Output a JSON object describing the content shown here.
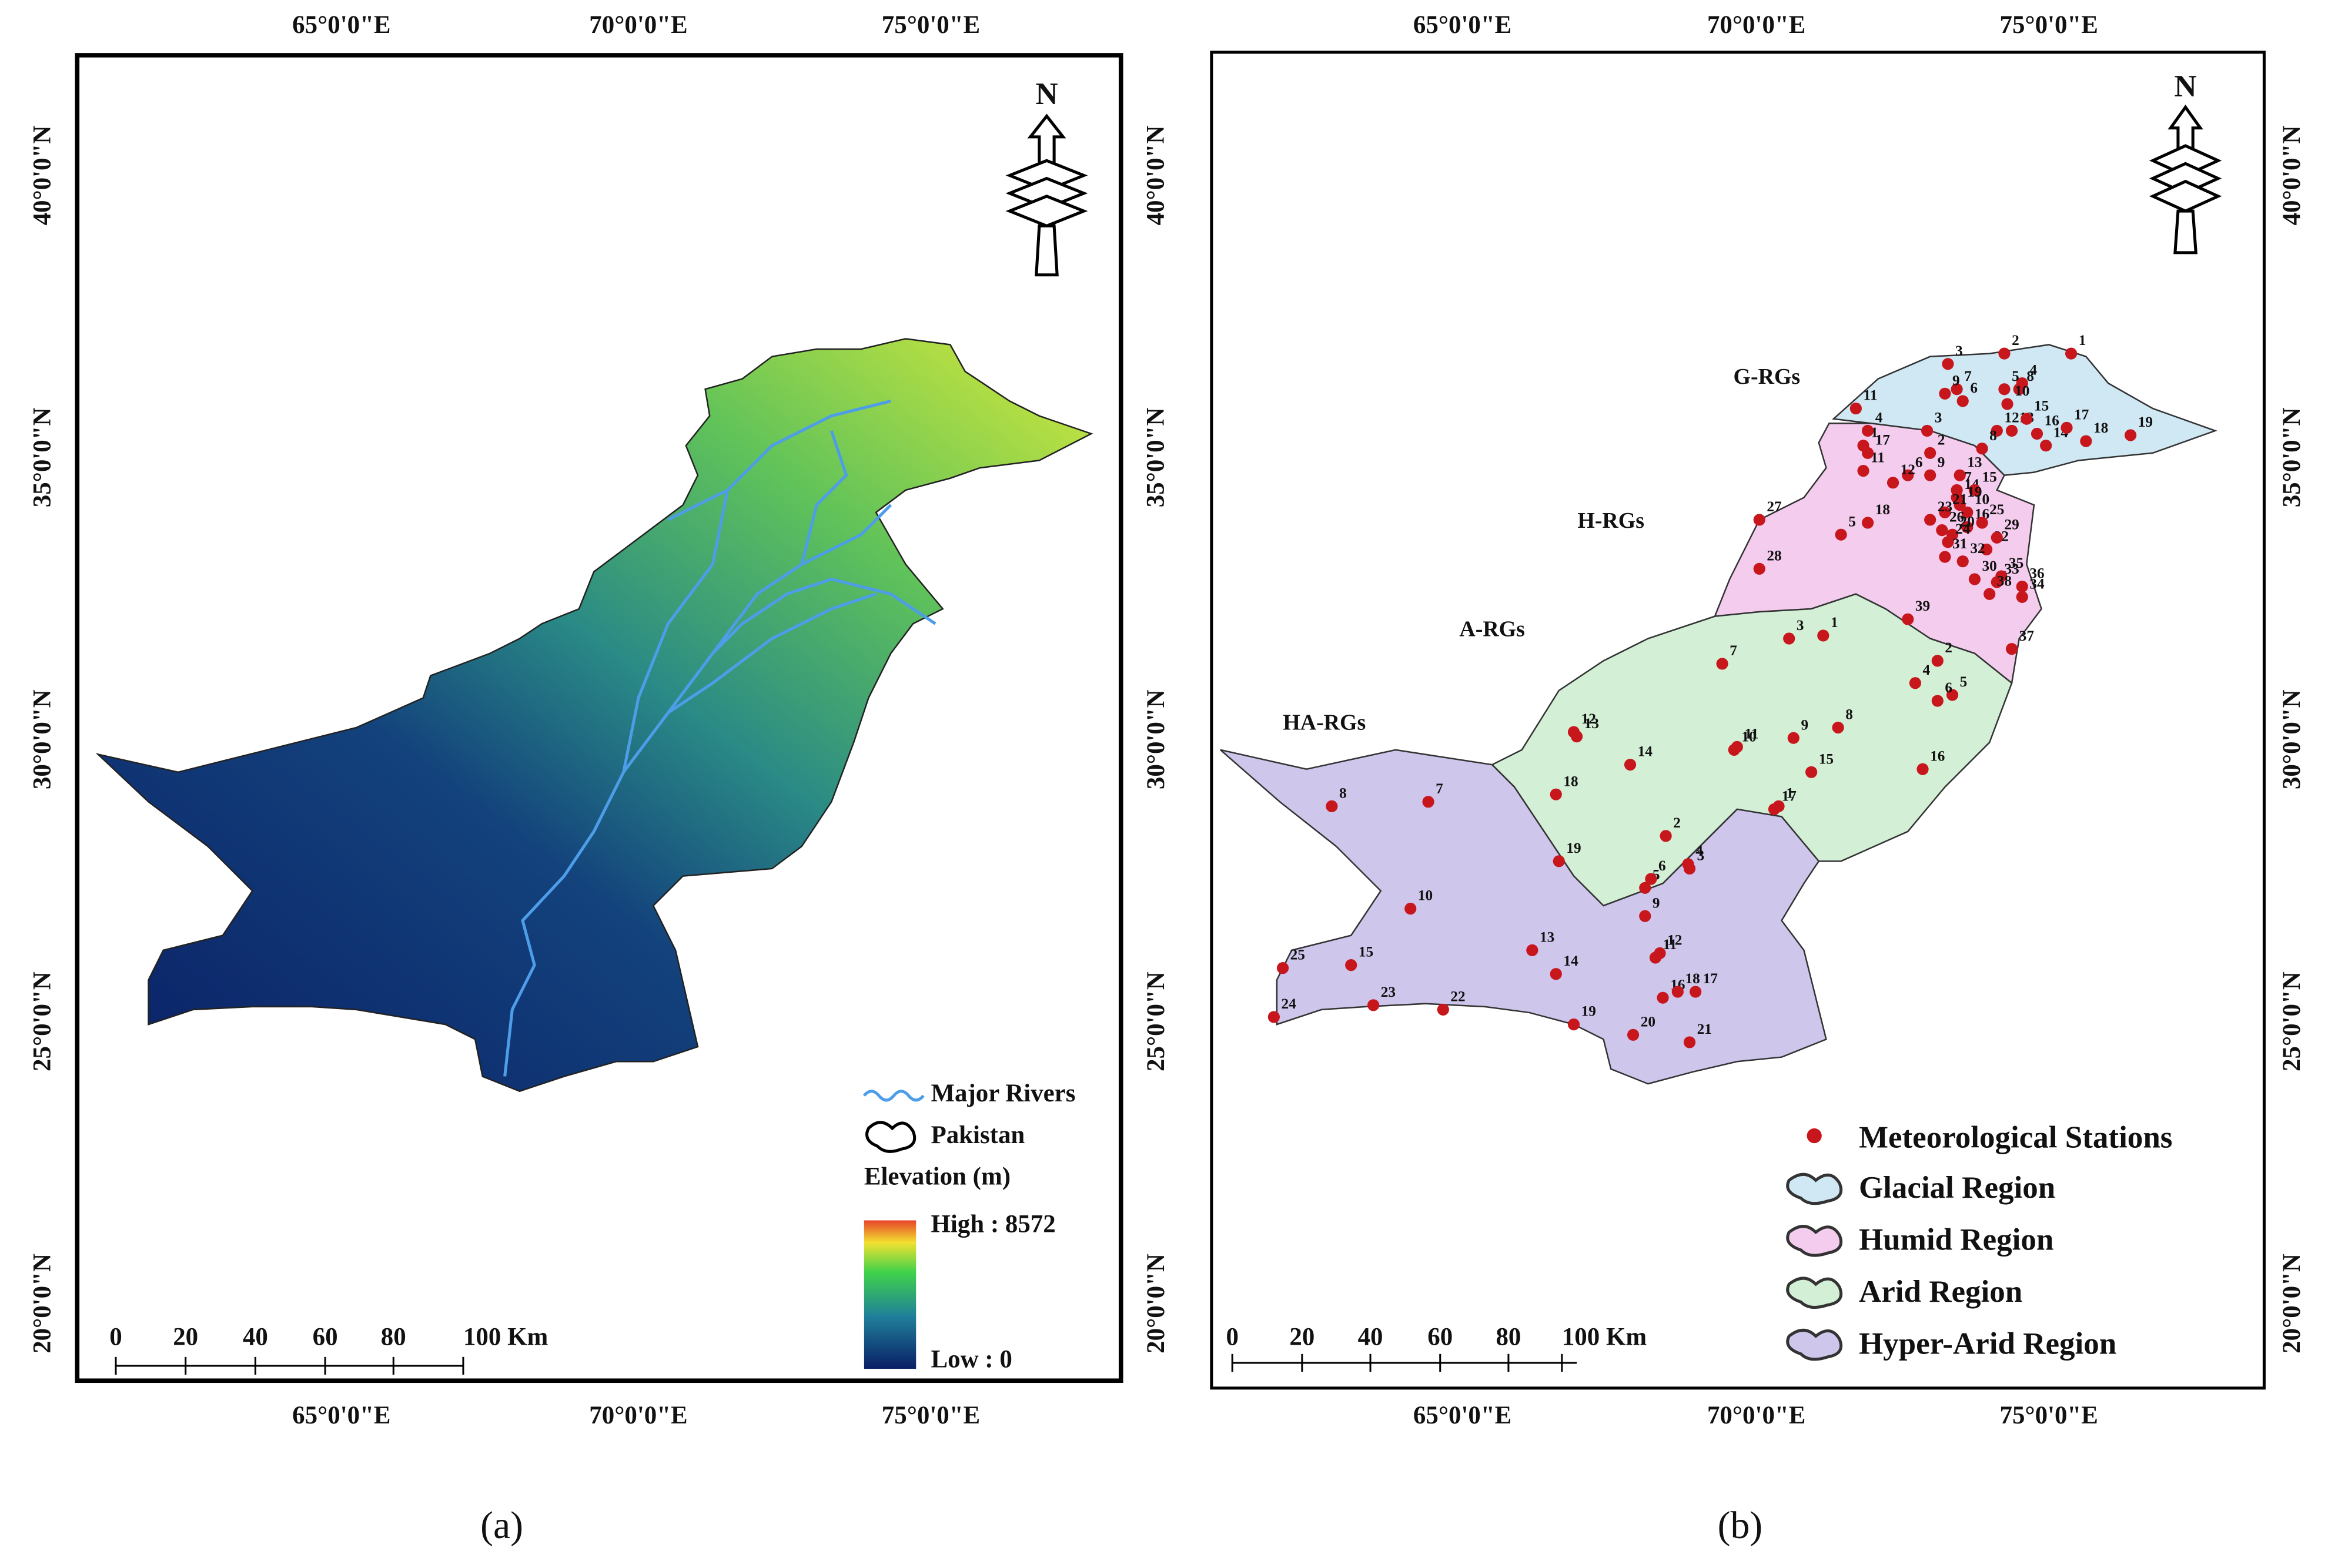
{
  "panels": [
    {
      "caption": "(a)",
      "north": "N",
      "lon_labels": [
        "65°0'0\"E",
        "70°0'0\"E",
        "75°0'0\"E"
      ],
      "lat_labels": [
        "40°0'0\"N",
        "35°0'0\"N",
        "30°0'0\"N",
        "25°0'0\"N",
        "20°0'0\"N"
      ],
      "legend": {
        "rivers": "Major Rivers",
        "boundary": "Pakistan",
        "elevation_title": "Elevation (m)",
        "high": "High : 8572",
        "low": "Low : 0"
      },
      "scale_bar": [
        "0",
        "20",
        "40",
        "60",
        "80",
        "100 Km"
      ]
    },
    {
      "caption": "(b)",
      "north": "N",
      "lon_labels": [
        "65°0'0\"E",
        "70°0'0\"E",
        "75°0'0\"E"
      ],
      "lat_labels": [
        "40°0'0\"N",
        "35°0'0\"N",
        "30°0'0\"N",
        "25°0'0\"N",
        "20°0'0\"N"
      ],
      "legend": [
        "Meteorological Stations",
        "Glacial Region",
        "Humid Region",
        "Arid Region",
        "Hyper-Arid Region"
      ],
      "scale_bar": [
        "0",
        "20",
        "40",
        "60",
        "80",
        "100 Km"
      ],
      "regions": [
        {
          "name": "G-RGs",
          "stations": [
            "1",
            "2",
            "3",
            "4",
            "5",
            "6",
            "7",
            "8",
            "9",
            "10",
            "11",
            "12",
            "13",
            "14",
            "15",
            "16",
            "17",
            "18",
            "19"
          ]
        },
        {
          "name": "H-RGs",
          "stations": [
            "1",
            "2",
            "3",
            "4",
            "5",
            "6",
            "7",
            "8",
            "9",
            "10",
            "11",
            "12",
            "13",
            "14",
            "15",
            "16",
            "17",
            "18",
            "19",
            "20",
            "21",
            "22",
            "23",
            "24",
            "25",
            "26",
            "27",
            "28",
            "29",
            "30",
            "31",
            "32",
            "33",
            "34",
            "35",
            "36",
            "37",
            "38",
            "39"
          ]
        },
        {
          "name": "A-RGs",
          "stations": [
            "1",
            "2",
            "3",
            "4",
            "5",
            "6",
            "7",
            "8",
            "9",
            "10",
            "11",
            "12",
            "13",
            "14",
            "15",
            "16",
            "17",
            "18",
            "19"
          ]
        },
        {
          "name": "HA-RGs",
          "stations": [
            "1",
            "2",
            "3",
            "4",
            "5",
            "6",
            "7",
            "8",
            "9",
            "10",
            "11",
            "12",
            "13",
            "14",
            "15",
            "16",
            "17",
            "18",
            "19",
            "20",
            "21",
            "22",
            "23",
            "24",
            "25"
          ]
        }
      ]
    }
  ]
}
